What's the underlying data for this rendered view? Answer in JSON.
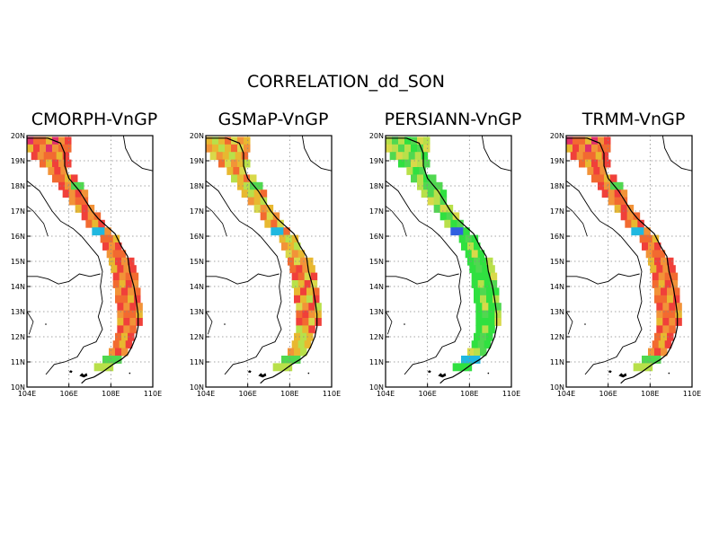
{
  "title": "CORRELATION_dd_SON",
  "axes": {
    "lat_labels": [
      "20N",
      "19N",
      "18N",
      "17N",
      "16N",
      "15N",
      "14N",
      "13N",
      "12N",
      "11N",
      "10N"
    ],
    "lon_labels": [
      "104E",
      "106E",
      "108E",
      "110E"
    ],
    "lat_range": [
      10,
      20
    ],
    "lon_range": [
      104,
      110
    ],
    "grid": "dotted"
  },
  "panels": [
    {
      "id": "cmorph",
      "title": "CMORPH-VnGP",
      "scheme": "warm"
    },
    {
      "id": "gsmap",
      "title": "GSMaP-VnGP",
      "scheme": "mixed"
    },
    {
      "id": "persiann",
      "title": "PERSIANN-VnGP",
      "scheme": "cool"
    },
    {
      "id": "trmm",
      "title": "TRMM-VnGP",
      "scheme": "warm"
    }
  ],
  "colors": {
    "red": "#f0403a",
    "orange_red": "#f26a30",
    "orange": "#f29338",
    "yellow_orange": "#e8b830",
    "yellow": "#d9d94a",
    "yellow_green": "#b8e04a",
    "green": "#50d850",
    "bright_green": "#30e040",
    "cyan": "#20b8e0",
    "blue": "#3060e0",
    "purple": "#6a2ae0",
    "magenta": "#e0306a"
  }
}
